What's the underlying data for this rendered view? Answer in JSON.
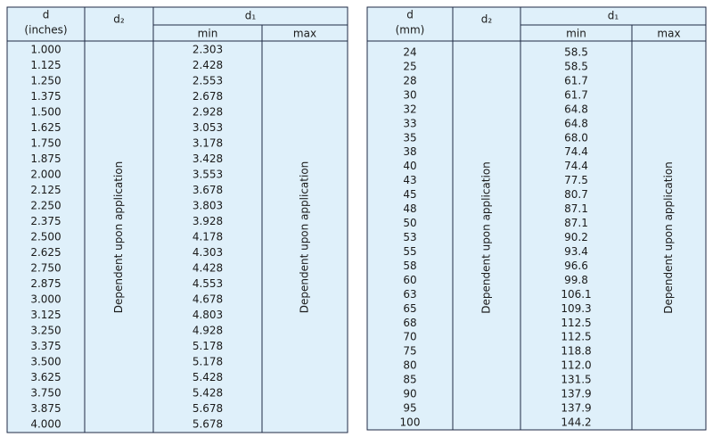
{
  "tables": [
    {
      "header": {
        "d": "d",
        "d_unit": "(inches)",
        "d2": "d₂",
        "d1": "d₁",
        "min": "min",
        "max": "max"
      },
      "d2_note": "Dependent upon application",
      "max_note": "Dependent upon application",
      "rows": [
        [
          "1.000",
          "2.303"
        ],
        [
          "1.125",
          "2.428"
        ],
        [
          "1.250",
          "2.553"
        ],
        [
          "1.375",
          "2.678"
        ],
        [
          "1.500",
          "2.928"
        ],
        [
          "1.625",
          "3.053"
        ],
        [
          "1.750",
          "3.178"
        ],
        [
          "1.875",
          "3.428"
        ],
        [
          "2.000",
          "3.553"
        ],
        [
          "2.125",
          "3.678"
        ],
        [
          "2.250",
          "3.803"
        ],
        [
          "2.375",
          "3.928"
        ],
        [
          "2.500",
          "4.178"
        ],
        [
          "2.625",
          "4.303"
        ],
        [
          "2.750",
          "4.428"
        ],
        [
          "2.875",
          "4.553"
        ],
        [
          "3.000",
          "4.678"
        ],
        [
          "3.125",
          "4.803"
        ],
        [
          "3.250",
          "4.928"
        ],
        [
          "3.375",
          "5.178"
        ],
        [
          "3.500",
          "5.178"
        ],
        [
          "3.625",
          "5.428"
        ],
        [
          "3.750",
          "5.428"
        ],
        [
          "3.875",
          "5.678"
        ],
        [
          "4.000",
          "5.678"
        ]
      ]
    },
    {
      "header": {
        "d": "d",
        "d_unit": "(mm)",
        "d2": "d₂",
        "d1": "d₁",
        "min": "min",
        "max": "max"
      },
      "d2_note": "Dependent upon application",
      "max_note": "Dependent upon application",
      "rows": [
        [
          "24",
          "58.5"
        ],
        [
          "25",
          "58.5"
        ],
        [
          "28",
          "61.7"
        ],
        [
          "30",
          "61.7"
        ],
        [
          "32",
          "64.8"
        ],
        [
          "33",
          "64.8"
        ],
        [
          "35",
          "68.0"
        ],
        [
          "38",
          "74.4"
        ],
        [
          "40",
          "74.4"
        ],
        [
          "43",
          "77.5"
        ],
        [
          "45",
          "80.7"
        ],
        [
          "48",
          "87.1"
        ],
        [
          "50",
          "87.1"
        ],
        [
          "53",
          "90.2"
        ],
        [
          "55",
          "93.4"
        ],
        [
          "58",
          "96.6"
        ],
        [
          "60",
          "99.8"
        ],
        [
          "63",
          "106.1"
        ],
        [
          "65",
          "109.3"
        ],
        [
          "68",
          "112.5"
        ],
        [
          "70",
          "112.5"
        ],
        [
          "75",
          "118.8"
        ],
        [
          "80",
          "112.0"
        ],
        [
          "85",
          "131.5"
        ],
        [
          "90",
          "137.9"
        ],
        [
          "95",
          "137.9"
        ],
        [
          "100",
          "144.2"
        ]
      ]
    }
  ]
}
